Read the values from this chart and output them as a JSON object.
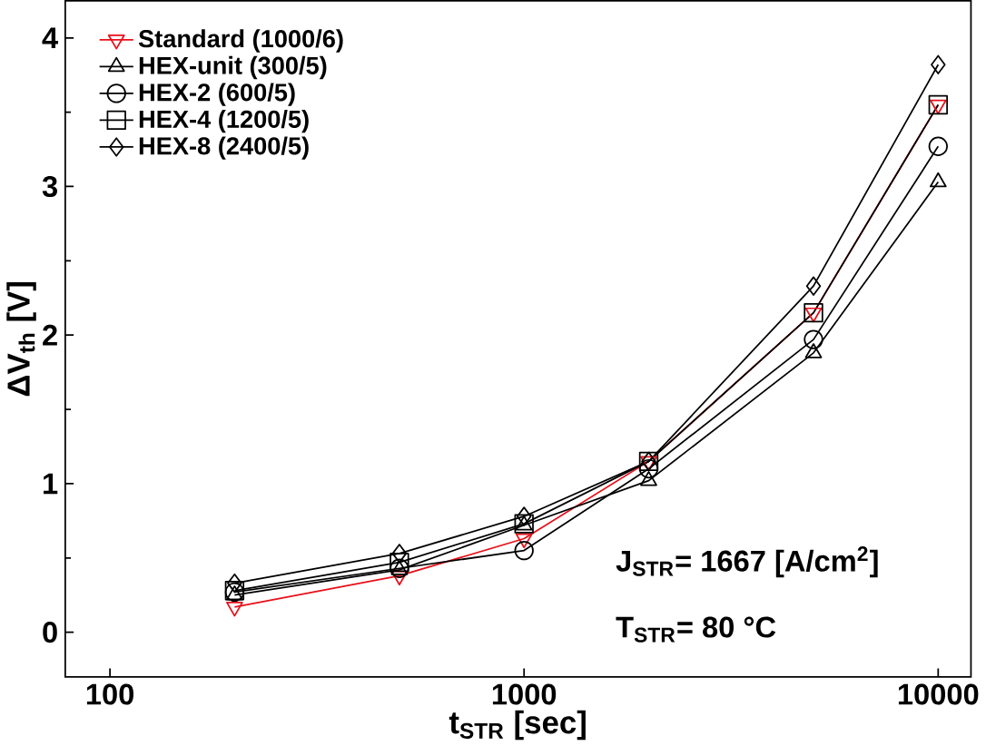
{
  "chart_data": {
    "type": "line",
    "xlabel": "t$_{STR}$ [sec]",
    "ylabel": "ΔV$_{th}$ [V]",
    "log": "x",
    "xlim": [
      78,
      12000
    ],
    "xticks": [
      100,
      1000,
      10000
    ],
    "ylim": [
      -0.3,
      4.25
    ],
    "yticks": [
      0,
      1,
      2,
      3,
      4
    ],
    "grid": false,
    "legend": "top left",
    "line_style": "solid",
    "x": [
      200,
      500,
      1000,
      2000,
      5000,
      10000
    ],
    "series": [
      {
        "name": "Standard (1000/6)",
        "color": "#e8101a",
        "marker": "triangle-down",
        "values": [
          0.17,
          0.38,
          0.63,
          1.15,
          2.15,
          3.55
        ]
      },
      {
        "name": "HEX-unit (300/5)",
        "color": "#000000",
        "marker": "triangle",
        "values": [
          0.25,
          0.42,
          0.72,
          1.02,
          1.88,
          3.03
        ]
      },
      {
        "name": "HEX-2 (600/5)",
        "color": "#000000",
        "marker": "circle",
        "values": [
          0.27,
          0.43,
          0.55,
          1.1,
          1.97,
          3.27
        ]
      },
      {
        "name": "HEX-4 (1200/5)",
        "color": "#000000",
        "marker": "square",
        "values": [
          0.28,
          0.47,
          0.73,
          1.15,
          2.15,
          3.55
        ]
      },
      {
        "name": "HEX-8 (2400/5)",
        "color": "#000000",
        "marker": "diamond",
        "values": [
          0.33,
          0.53,
          0.78,
          1.15,
          2.33,
          3.82
        ]
      }
    ],
    "annotations": [
      "J$_{STR}$= 1667 [A/cm$^{2}$]",
      "T$_{STR}$= 80 °C"
    ]
  }
}
